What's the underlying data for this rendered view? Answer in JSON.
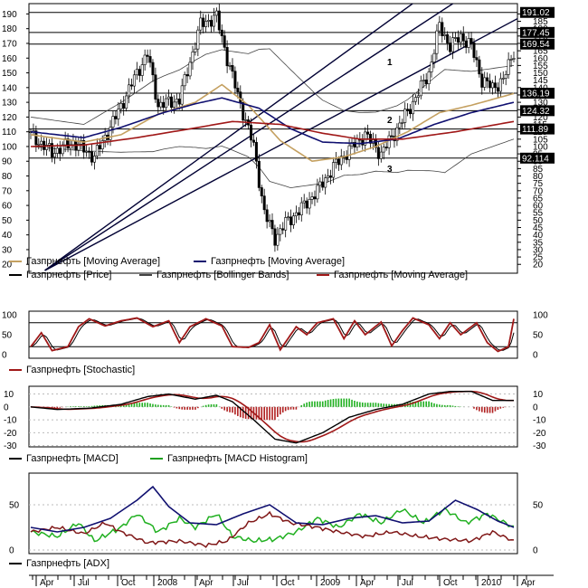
{
  "chart_data": [
    {
      "panel": "price",
      "type": "candlestick",
      "ylim": [
        14,
        197
      ],
      "yticks": [
        20,
        25,
        30,
        35,
        40,
        45,
        50,
        55,
        60,
        65,
        70,
        75,
        80,
        85,
        90,
        95,
        100,
        105,
        110,
        115,
        120,
        125,
        130,
        135,
        140,
        145,
        150,
        155,
        160,
        165,
        170,
        175,
        180,
        185,
        190
      ],
      "ytick_labels_right": [
        "20",
        "25",
        "30",
        "35",
        "40",
        "45",
        "50",
        "55",
        "60",
        "65",
        "70",
        "75",
        "80",
        "85",
        "90",
        "95",
        "100",
        "105",
        "110",
        "115",
        "120",
        "125",
        "130",
        "135",
        "140",
        "145",
        "150",
        "155",
        "160",
        "165",
        "170",
        "175",
        "180",
        "185",
        "190"
      ],
      "ytick_labels_left": [
        "20",
        "30",
        "40",
        "50",
        "60",
        "70",
        "80",
        "90",
        "100",
        "110",
        "120",
        "130",
        "140",
        "150",
        "160",
        "170",
        "180",
        "190"
      ],
      "horizontal_levels": [
        {
          "value": 191.02,
          "label": "191.02"
        },
        {
          "value": 177.45,
          "label": "177.45"
        },
        {
          "value": 169.54,
          "label": "169.54"
        },
        {
          "value": 136.19,
          "label": "136.19"
        },
        {
          "value": 124.32,
          "label": "124.32"
        },
        {
          "value": 111.89,
          "label": "111.89"
        },
        {
          "value": 92.114,
          "label": "92.114"
        }
      ],
      "channel_labels": [
        "1",
        "2",
        "3"
      ],
      "close_anchors": [
        [
          0,
          108
        ],
        [
          8,
          96
        ],
        [
          16,
          103
        ],
        [
          24,
          93
        ],
        [
          32,
          120
        ],
        [
          40,
          150
        ],
        [
          44,
          163
        ],
        [
          48,
          128
        ],
        [
          56,
          132
        ],
        [
          64,
          183
        ],
        [
          70,
          188
        ],
        [
          74,
          160
        ],
        [
          78,
          135
        ],
        [
          84,
          100
        ],
        [
          88,
          55
        ],
        [
          92,
          38
        ],
        [
          96,
          48
        ],
        [
          102,
          58
        ],
        [
          108,
          70
        ],
        [
          114,
          86
        ],
        [
          120,
          98
        ],
        [
          126,
          108
        ],
        [
          132,
          95
        ],
        [
          138,
          112
        ],
        [
          144,
          130
        ],
        [
          150,
          150
        ],
        [
          154,
          182
        ],
        [
          158,
          168
        ],
        [
          162,
          175
        ],
        [
          166,
          168
        ],
        [
          170,
          145
        ],
        [
          174,
          140
        ],
        [
          178,
          145
        ],
        [
          182,
          165
        ]
      ],
      "ma_tan_anchors": [
        [
          0,
          108
        ],
        [
          20,
          103
        ],
        [
          34,
          108
        ],
        [
          48,
          122
        ],
        [
          62,
          130
        ],
        [
          72,
          142
        ],
        [
          82,
          128
        ],
        [
          94,
          104
        ],
        [
          106,
          90
        ],
        [
          118,
          93
        ],
        [
          130,
          100
        ],
        [
          142,
          110
        ],
        [
          154,
          123
        ],
        [
          166,
          128
        ],
        [
          182,
          136
        ]
      ],
      "ma_black_anchors": [
        [
          0,
          110
        ],
        [
          20,
          106
        ],
        [
          34,
          113
        ],
        [
          50,
          123
        ],
        [
          62,
          129
        ],
        [
          72,
          133
        ],
        [
          86,
          126
        ],
        [
          98,
          112
        ],
        [
          110,
          103
        ],
        [
          124,
          102
        ],
        [
          138,
          105
        ],
        [
          152,
          115
        ],
        [
          166,
          123
        ],
        [
          182,
          130
        ]
      ],
      "ma_red_anchors": [
        [
          0,
          100
        ],
        [
          20,
          101
        ],
        [
          40,
          106
        ],
        [
          60,
          112
        ],
        [
          76,
          117
        ],
        [
          94,
          115
        ],
        [
          110,
          109
        ],
        [
          124,
          105
        ],
        [
          140,
          105
        ],
        [
          160,
          110
        ],
        [
          182,
          117
        ]
      ],
      "bb_width_anchors": [
        [
          0,
          10
        ],
        [
          20,
          9
        ],
        [
          36,
          18
        ],
        [
          46,
          24
        ],
        [
          56,
          26
        ],
        [
          66,
          32
        ],
        [
          74,
          33
        ],
        [
          82,
          35
        ],
        [
          90,
          45
        ],
        [
          98,
          40
        ],
        [
          108,
          30
        ],
        [
          118,
          22
        ],
        [
          130,
          20
        ],
        [
          142,
          24
        ],
        [
          150,
          30
        ],
        [
          156,
          35
        ],
        [
          166,
          28
        ],
        [
          182,
          25
        ]
      ],
      "channels": [
        {
          "x1": 2009.7,
          "y1": 144,
          "x2": 4055.1,
          "y2": 233,
          "name": "channel-1"
        },
        {
          "x1": 2009.6,
          "y1": 144,
          "x2": 4007.2,
          "y2": 197,
          "name": "channel-2"
        },
        {
          "x1": 2009.5,
          "y1": 144,
          "x2": 3987.5,
          "y2": 175,
          "name": "channel-3"
        }
      ],
      "legend": [
        {
          "label": "Газпрнефть [Moving Average]",
          "color": "#c4a060"
        },
        {
          "label": "Газпрнефть [Moving Average]",
          "color": "#101070"
        },
        {
          "label": "Газпрнефть [Price]",
          "color": "#000000"
        },
        {
          "label": "Газпрнефть [Bollinger Bands]",
          "color": "#444444"
        },
        {
          "label": "Газпрнефть [Moving Average]",
          "color": "#a01818"
        }
      ]
    },
    {
      "panel": "stochastic",
      "type": "line",
      "ylim": [
        0,
        100
      ],
      "levels": [
        20,
        80
      ],
      "yticks": [
        0,
        50,
        100
      ],
      "ytick_labels": [
        "0",
        "50",
        "100"
      ],
      "k_anchors": [
        [
          0,
          20
        ],
        [
          4,
          55
        ],
        [
          8,
          10
        ],
        [
          14,
          20
        ],
        [
          18,
          70
        ],
        [
          22,
          90
        ],
        [
          28,
          72
        ],
        [
          34,
          85
        ],
        [
          40,
          92
        ],
        [
          46,
          70
        ],
        [
          52,
          85
        ],
        [
          56,
          30
        ],
        [
          60,
          70
        ],
        [
          66,
          90
        ],
        [
          72,
          72
        ],
        [
          76,
          20
        ],
        [
          82,
          18
        ],
        [
          86,
          30
        ],
        [
          90,
          75
        ],
        [
          94,
          12
        ],
        [
          100,
          70
        ],
        [
          104,
          50
        ],
        [
          108,
          80
        ],
        [
          114,
          90
        ],
        [
          118,
          40
        ],
        [
          122,
          85
        ],
        [
          126,
          50
        ],
        [
          132,
          82
        ],
        [
          136,
          22
        ],
        [
          140,
          60
        ],
        [
          144,
          92
        ],
        [
          150,
          75
        ],
        [
          154,
          40
        ],
        [
          158,
          80
        ],
        [
          162,
          50
        ],
        [
          168,
          80
        ],
        [
          172,
          30
        ],
        [
          176,
          8
        ],
        [
          180,
          20
        ],
        [
          182,
          90
        ]
      ],
      "legend": [
        {
          "label": "Газпрнефть [Stochastic]",
          "color": "#a01818"
        }
      ]
    },
    {
      "panel": "macd",
      "type": "line+bar",
      "ylim": [
        -31,
        16
      ],
      "yticks": [
        10,
        0,
        -10,
        -20,
        -30
      ],
      "ytick_labels": [
        "10",
        "0",
        "-10",
        "-20",
        "-30"
      ],
      "macd_anchors": [
        [
          0,
          0
        ],
        [
          10,
          -2
        ],
        [
          22,
          -1
        ],
        [
          34,
          2
        ],
        [
          44,
          8
        ],
        [
          52,
          10
        ],
        [
          62,
          6
        ],
        [
          70,
          9
        ],
        [
          76,
          4
        ],
        [
          84,
          -10
        ],
        [
          92,
          -25
        ],
        [
          100,
          -28
        ],
        [
          110,
          -20
        ],
        [
          120,
          -8
        ],
        [
          130,
          -2
        ],
        [
          140,
          2
        ],
        [
          150,
          10
        ],
        [
          158,
          12
        ],
        [
          166,
          12
        ],
        [
          174,
          5
        ],
        [
          182,
          5
        ]
      ],
      "legend": [
        {
          "label": "Газпрнефть [MACD]",
          "color": "#000000"
        },
        {
          "label": "Газпрнефть [MACD Histogram]",
          "color": "#20a020"
        }
      ]
    },
    {
      "panel": "adx",
      "type": "line",
      "ylim": [
        -4,
        85
      ],
      "yticks": [
        0,
        50
      ],
      "ytick_labels": [
        "0",
        "50"
      ],
      "adx_anchors": [
        [
          0,
          25
        ],
        [
          10,
          20
        ],
        [
          20,
          25
        ],
        [
          30,
          35
        ],
        [
          40,
          55
        ],
        [
          46,
          70
        ],
        [
          52,
          48
        ],
        [
          60,
          30
        ],
        [
          70,
          28
        ],
        [
          80,
          40
        ],
        [
          90,
          50
        ],
        [
          100,
          30
        ],
        [
          110,
          28
        ],
        [
          120,
          35
        ],
        [
          130,
          38
        ],
        [
          140,
          30
        ],
        [
          150,
          32
        ],
        [
          160,
          55
        ],
        [
          168,
          45
        ],
        [
          176,
          32
        ],
        [
          182,
          25
        ]
      ],
      "plus_di_anchors": [
        [
          0,
          20
        ],
        [
          10,
          15
        ],
        [
          18,
          30
        ],
        [
          24,
          10
        ],
        [
          34,
          25
        ],
        [
          40,
          40
        ],
        [
          48,
          20
        ],
        [
          56,
          35
        ],
        [
          62,
          25
        ],
        [
          70,
          40
        ],
        [
          76,
          15
        ],
        [
          84,
          10
        ],
        [
          92,
          12
        ],
        [
          100,
          20
        ],
        [
          108,
          35
        ],
        [
          116,
          25
        ],
        [
          124,
          40
        ],
        [
          132,
          30
        ],
        [
          140,
          45
        ],
        [
          148,
          30
        ],
        [
          156,
          45
        ],
        [
          164,
          30
        ],
        [
          172,
          40
        ],
        [
          182,
          25
        ]
      ],
      "minus_di_anchors": [
        [
          0,
          20
        ],
        [
          10,
          25
        ],
        [
          20,
          18
        ],
        [
          28,
          30
        ],
        [
          34,
          20
        ],
        [
          44,
          8
        ],
        [
          56,
          10
        ],
        [
          66,
          5
        ],
        [
          74,
          10
        ],
        [
          82,
          30
        ],
        [
          90,
          40
        ],
        [
          98,
          30
        ],
        [
          108,
          25
        ],
        [
          116,
          20
        ],
        [
          126,
          15
        ],
        [
          136,
          20
        ],
        [
          146,
          15
        ],
        [
          156,
          12
        ],
        [
          166,
          10
        ],
        [
          174,
          20
        ],
        [
          182,
          10
        ]
      ],
      "legend": [
        {
          "label": "Газпрнефть [ADX]",
          "color": "#000000"
        }
      ]
    }
  ],
  "x_axis": {
    "labels": [
      "Apr",
      "Jul",
      "Oct",
      "2008",
      "Apr",
      "Jul",
      "Oct",
      "2009",
      "Apr",
      "Jul",
      "Oct",
      "2010",
      "Apr"
    ],
    "bars_total": 183
  },
  "colors": {
    "ma_tan": "#c4a060",
    "ma_black": "#101070",
    "ma_red": "#a01818",
    "bollinger": "#444444",
    "channel": "#000033",
    "stoch": "#a01818",
    "macd_signal": "#a01818",
    "hist_pos": "#20b020",
    "hist_neg": "#b02020",
    "adx": "#101070",
    "plus_di": "#20b020",
    "minus_di": "#801818",
    "level_tag": "#000000"
  }
}
